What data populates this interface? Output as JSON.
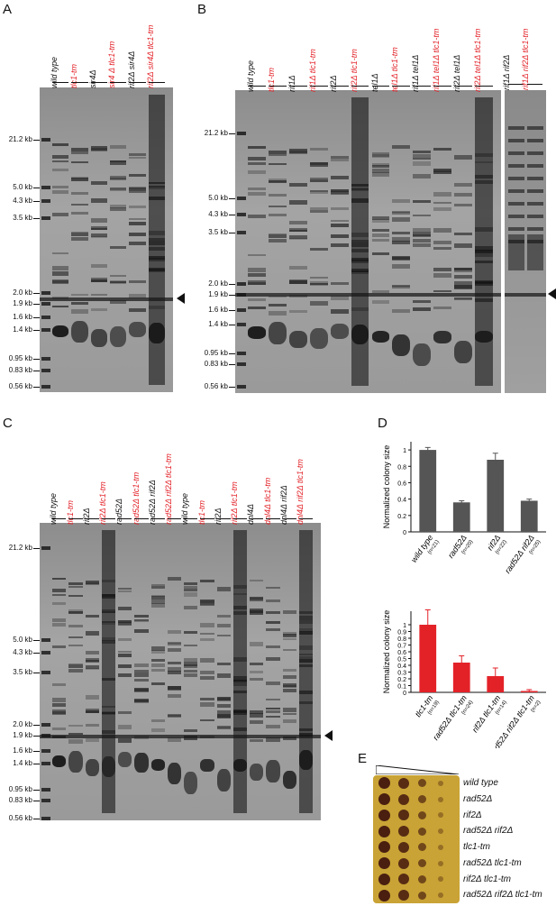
{
  "panels": {
    "A": {
      "label": "A",
      "lanes": [
        {
          "text": "wild type",
          "color": "#111111"
        },
        {
          "text": "tlc1-tm",
          "color": "#e32228"
        },
        {
          "text": "sir4Δ",
          "color": "#111111"
        },
        {
          "text": "sir4 Δ tlc1-tm",
          "color": "#e32228"
        },
        {
          "text": "rif2Δ sir4Δ",
          "color": "#111111"
        },
        {
          "text": "rif2Δ sir4Δ tlc1-tm",
          "color": "#e32228"
        }
      ],
      "sizes": [
        "21.2 kb",
        "5.0 kb",
        "4.3 kb",
        "3.5 kb",
        "2.0 kb",
        "1.9 kb",
        "1.6 kb",
        "1.4 kb",
        "0.95 kb",
        "0.83 kb",
        "0.56 kb"
      ]
    },
    "B": {
      "label": "B",
      "lanes": [
        {
          "text": "wild type",
          "color": "#111111"
        },
        {
          "text": "tlc1-tm",
          "color": "#e32228"
        },
        {
          "text": "rif1Δ",
          "color": "#111111"
        },
        {
          "text": "rif1Δ tlc1-tm",
          "color": "#e32228"
        },
        {
          "text": "rif2Δ",
          "color": "#111111"
        },
        {
          "text": "rif2Δ tlc1-tm",
          "color": "#e32228"
        },
        {
          "text": "tel1Δ",
          "color": "#111111"
        },
        {
          "text": "tel1Δ tlc1-tm",
          "color": "#e32228"
        },
        {
          "text": "rif1Δ tel1Δ",
          "color": "#111111"
        },
        {
          "text": "rif1Δ tel1Δ tlc1-tm",
          "color": "#e32228"
        },
        {
          "text": "rif2Δ tel1Δ",
          "color": "#111111"
        },
        {
          "text": "rif2Δ tel1Δ tlc1-tm",
          "color": "#e32228"
        }
      ],
      "extra_lanes": [
        {
          "text": "rif1Δ rif2Δ",
          "color": "#111111"
        },
        {
          "text": "rif1Δ rif2Δ tlc1-tm",
          "color": "#e32228"
        }
      ],
      "sizes": [
        "21.2 kb",
        "5.0 kb",
        "4.3 kb",
        "3.5 kb",
        "2.0 kb",
        "1.9 kb",
        "1.6 kb",
        "1.4 kb",
        "0.95 kb",
        "0.83 kb",
        "0.56 kb"
      ]
    },
    "C": {
      "label": "C",
      "lanes": [
        {
          "text": "wild type",
          "color": "#111111"
        },
        {
          "text": "tlc1-tm",
          "color": "#e32228"
        },
        {
          "text": "rif2Δ",
          "color": "#111111"
        },
        {
          "text": "rif2Δ tlc1-tm",
          "color": "#e32228"
        },
        {
          "text": "rad52Δ",
          "color": "#111111"
        },
        {
          "text": "rad52Δ tlc1-tm",
          "color": "#e32228"
        },
        {
          "text": "rad52Δ rif2Δ",
          "color": "#111111"
        },
        {
          "text": "rad52Δ rif2Δ tlc1-tm",
          "color": "#e32228"
        },
        {
          "text": "wild type",
          "color": "#111111"
        },
        {
          "text": "tlc1-tm",
          "color": "#e32228"
        },
        {
          "text": "rif2Δ",
          "color": "#111111"
        },
        {
          "text": "rif2Δ tlc1-tm",
          "color": "#e32228"
        },
        {
          "text": "dnl4Δ",
          "color": "#111111"
        },
        {
          "text": "dnl4Δ tlc1-tm",
          "color": "#e32228"
        },
        {
          "text": "dnl4Δ rif2Δ",
          "color": "#111111"
        },
        {
          "text": "dnl4Δ rif2Δ tlc1-tm",
          "color": "#e32228"
        }
      ],
      "sizes": [
        "21.2 kb",
        "5.0 kb",
        "4.3 kb",
        "3.5 kb",
        "2.0 kb",
        "1.9 kb",
        "1.6 kb",
        "1.4 kb",
        "0.95 kb",
        "0.83 kb",
        "0.56 kb"
      ]
    },
    "D": {
      "label": "D"
    },
    "E": {
      "label": "E",
      "strains": [
        "wild type",
        "rad52Δ",
        "rif2Δ",
        "rad52Δ rif2Δ",
        "tlc1-tm",
        "rad52Δ tlc1-tm",
        "rif2Δ tlc1-tm",
        "rad52Δ rif2Δ tlc1-tm"
      ]
    }
  },
  "chart_data": [
    {
      "type": "bar",
      "ylabel": "Normalized colony size",
      "categories": [
        "wild type",
        "rad52Δ",
        "rif2Δ",
        "rad52Δ rif2Δ"
      ],
      "n_labels": [
        "(n=21)",
        "(n=20)",
        "(n=22)",
        "(n=25)"
      ],
      "values": [
        1.0,
        0.36,
        0.88,
        0.38
      ],
      "errors": [
        0.03,
        0.02,
        0.08,
        0.02
      ],
      "ylim": [
        0,
        1.1
      ],
      "yticks": [
        "0",
        "0.2",
        "0.4",
        "0.6",
        "0.8",
        "1"
      ],
      "color": "#555555"
    },
    {
      "type": "bar",
      "ylabel": "Normalized colony size",
      "categories": [
        "tlc1-tm",
        "rad52Δ tlc1-tm",
        "rif2Δ tlc1-tm",
        "rad52Δ rif2Δ tlc1-tm"
      ],
      "n_labels": [
        "(n=19)",
        "(n=24)",
        "(n=14)",
        "(n=2)"
      ],
      "values": [
        1.0,
        0.44,
        0.24,
        0.02
      ],
      "errors": [
        0.22,
        0.1,
        0.12,
        0.02
      ],
      "ylim": [
        0,
        1.2
      ],
      "yticks": [
        "0",
        "0.1",
        "0.2",
        "0.3",
        "0.4",
        "0.5",
        "0.6",
        "0.7",
        "0.8",
        "0.9",
        "1"
      ],
      "color": "#e32228"
    }
  ]
}
